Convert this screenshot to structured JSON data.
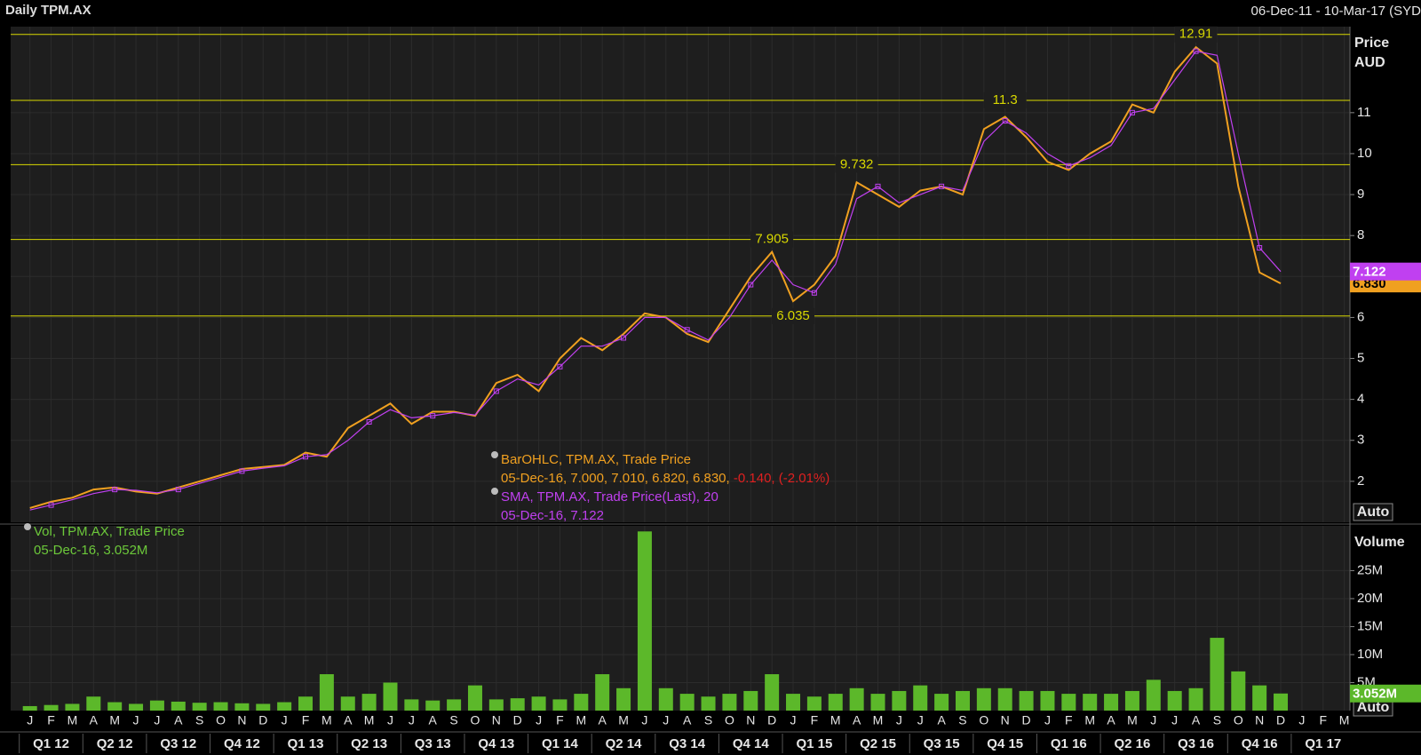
{
  "header": {
    "title": "Daily TPM.AX",
    "date_range": "06-Dec-11 - 10-Mar-17 (SYD"
  },
  "chart_data": [
    {
      "type": "line",
      "y_label_lines": [
        "Price",
        "AUD"
      ],
      "scale_button": "Auto",
      "categories": [
        "J",
        "F",
        "M",
        "A",
        "M",
        "J",
        "J",
        "A",
        "S",
        "O",
        "N",
        "D",
        "J",
        "F",
        "M",
        "A",
        "M",
        "J",
        "J",
        "A",
        "S",
        "O",
        "N",
        "D",
        "J",
        "F",
        "M",
        "A",
        "M",
        "J",
        "J",
        "A",
        "S",
        "O",
        "N",
        "D",
        "J",
        "F",
        "M",
        "A",
        "M",
        "J",
        "J",
        "A",
        "S",
        "O",
        "N",
        "D",
        "J",
        "F",
        "M",
        "A",
        "M",
        "J",
        "J",
        "A",
        "S",
        "O",
        "N",
        "D",
        "J",
        "F",
        "M"
      ],
      "quarters": [
        "Q1 12",
        "Q2 12",
        "Q3 12",
        "Q4 12",
        "Q1 13",
        "Q2 13",
        "Q3 13",
        "Q4 13",
        "Q1 14",
        "Q2 14",
        "Q3 14",
        "Q4 14",
        "Q1 15",
        "Q2 15",
        "Q3 15",
        "Q4 15",
        "Q1 16",
        "Q2 16",
        "Q3 16",
        "Q4 16",
        "Q1 17"
      ],
      "ylim": [
        1,
        13.1
      ],
      "yticks": [
        2,
        3,
        4,
        5,
        6,
        7,
        8,
        9,
        10,
        11
      ],
      "grid": true,
      "ref_lines": [
        12.91,
        11.3,
        9.732,
        7.905,
        6.035
      ],
      "ref_color": "#d8d800",
      "series": [
        {
          "name": "BarOHLC, TPM.AX, Trade Price",
          "color": "#f0a020",
          "values": [
            1.35,
            1.5,
            1.6,
            1.8,
            1.85,
            1.75,
            1.7,
            1.85,
            2.0,
            2.15,
            2.3,
            2.35,
            2.4,
            2.7,
            2.6,
            3.3,
            3.6,
            3.9,
            3.4,
            3.7,
            3.7,
            3.6,
            4.4,
            4.6,
            4.2,
            5.0,
            5.5,
            5.2,
            5.6,
            6.1,
            6.0,
            5.6,
            5.4,
            6.2,
            7.0,
            7.6,
            6.4,
            6.8,
            7.5,
            9.3,
            9.0,
            8.7,
            9.1,
            9.2,
            9.0,
            10.6,
            10.9,
            10.4,
            9.8,
            9.6,
            10.0,
            10.3,
            11.2,
            11.0,
            12.0,
            12.6,
            12.2,
            9.2,
            7.1,
            6.83,
            null,
            null,
            null
          ],
          "last_value": {
            "value": 6.83,
            "label": "6.830"
          },
          "legend_detail": "05-Dec-16, 7.000, 7.010, 6.820, 6.830,",
          "legend_change": "-0.140, (-2.01%)",
          "change_color": "#e02020"
        },
        {
          "name": "SMA, TPM.AX, Trade Price(Last),  20",
          "color": "#c040f0",
          "values": [
            1.3,
            1.42,
            1.55,
            1.7,
            1.8,
            1.78,
            1.72,
            1.8,
            1.95,
            2.1,
            2.25,
            2.32,
            2.38,
            2.6,
            2.65,
            3.0,
            3.45,
            3.75,
            3.55,
            3.6,
            3.68,
            3.62,
            4.2,
            4.5,
            4.35,
            4.8,
            5.3,
            5.3,
            5.5,
            6.0,
            6.0,
            5.7,
            5.45,
            6.0,
            6.8,
            7.4,
            6.8,
            6.6,
            7.3,
            8.9,
            9.2,
            8.8,
            9.0,
            9.2,
            9.1,
            10.3,
            10.8,
            10.5,
            10.0,
            9.7,
            9.9,
            10.2,
            11.0,
            11.1,
            11.8,
            12.5,
            12.4,
            10.0,
            7.7,
            7.122,
            null,
            null,
            null
          ],
          "last_value": 7.122,
          "legend_detail": "05-Dec-16, 7.122"
        }
      ]
    },
    {
      "type": "bar",
      "y_label": "Volume",
      "scale_button": "Auto",
      "ylim": [
        0,
        33000000
      ],
      "yticks": [
        {
          "value": 5000000,
          "label": "5M"
        },
        {
          "value": 10000000,
          "label": "10M"
        },
        {
          "value": 15000000,
          "label": "15M"
        },
        {
          "value": 20000000,
          "label": "20M"
        },
        {
          "value": 25000000,
          "label": "25M"
        }
      ],
      "series": [
        {
          "name": "Vol, TPM.AX, Trade Price",
          "color": "#5cb82a",
          "values": [
            800000,
            1000000,
            1200000,
            2500000,
            1500000,
            1200000,
            1800000,
            1600000,
            1400000,
            1500000,
            1300000,
            1200000,
            1500000,
            2500000,
            6500000,
            2500000,
            3000000,
            5000000,
            2000000,
            1800000,
            2000000,
            4500000,
            2000000,
            2200000,
            2500000,
            2000000,
            3000000,
            6500000,
            4000000,
            32000000,
            4000000,
            3000000,
            2500000,
            3000000,
            3500000,
            6500000,
            3000000,
            2500000,
            3000000,
            4000000,
            3000000,
            3500000,
            4500000,
            3000000,
            3500000,
            4000000,
            4000000,
            3500000,
            3500000,
            3000000,
            3000000,
            3000000,
            3500000,
            5500000,
            3500000,
            4000000,
            13000000,
            7000000,
            4500000,
            3052000,
            null,
            null,
            null
          ],
          "last_value": {
            "value": 3052000,
            "label": "3.052M"
          },
          "legend_detail": "05-Dec-16, 3.052M"
        }
      ]
    }
  ]
}
